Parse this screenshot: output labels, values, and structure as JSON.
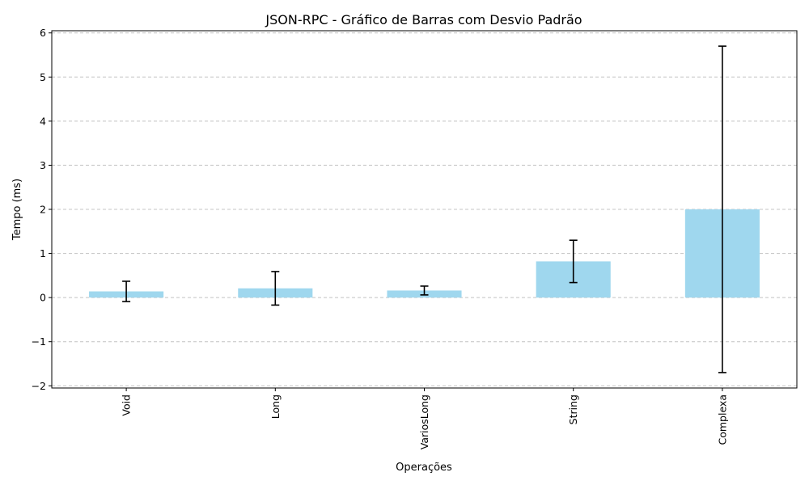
{
  "chart_data": {
    "type": "bar",
    "title": "JSON-RPC - Gráfico de Barras com Desvio Padrão",
    "xlabel": "Operações",
    "ylabel": "Tempo (ms)",
    "categories": [
      "Void",
      "Long",
      "VariosLong",
      "String",
      "Complexa"
    ],
    "values": [
      0.14,
      0.21,
      0.16,
      0.82,
      2.0
    ],
    "errors": [
      0.23,
      0.38,
      0.1,
      0.48,
      3.7
    ],
    "ylim": [
      -2.05,
      6.05
    ],
    "yticks": [
      -2,
      -1,
      0,
      1,
      2,
      3,
      4,
      5,
      6
    ],
    "ytick_labels": [
      "−2",
      "−1",
      "0",
      "1",
      "2",
      "3",
      "4",
      "5",
      "6"
    ],
    "grid": "y-dashed",
    "bar_color": "#9fd7ee",
    "error_color": "#000000"
  }
}
